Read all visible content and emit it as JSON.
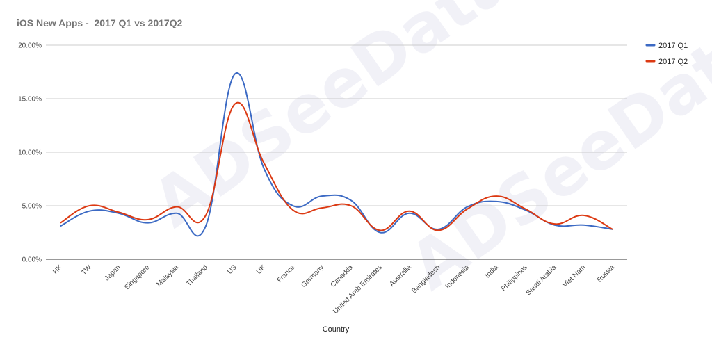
{
  "chart_data": {
    "type": "line",
    "title": "iOS New Apps -  2017 Q1 vs 2017Q2",
    "xlabel": "Country",
    "ylabel": "",
    "ylim": [
      0,
      0.2
    ],
    "yticks": [
      "0.00%",
      "5.00%",
      "10.00%",
      "15.00%",
      "20.00%"
    ],
    "ytick_values": [
      0,
      0.05,
      0.1,
      0.15,
      0.2
    ],
    "grid": true,
    "legend_position": "top-right",
    "watermark": "ADSeeData",
    "categories": [
      "HK",
      "TW",
      "Japan",
      "Singapore",
      "Malaysia",
      "Thailand",
      "US",
      "UK",
      "France",
      "Germany",
      "Canadda",
      "United Arab Emirates",
      "Australia",
      "Bangladesh",
      "Indonesia",
      "India",
      "Philippines",
      "Saudi Arabia",
      "Viet Nam",
      "Russia"
    ],
    "series": [
      {
        "name": "2017 Q1",
        "color": "#3c6ac4",
        "values": [
          0.031,
          0.045,
          0.043,
          0.034,
          0.043,
          0.031,
          0.173,
          0.085,
          0.05,
          0.059,
          0.055,
          0.025,
          0.043,
          0.028,
          0.049,
          0.054,
          0.046,
          0.032,
          0.032,
          0.028
        ]
      },
      {
        "name": "2017 Q2",
        "color": "#dc3912",
        "values": [
          0.034,
          0.05,
          0.044,
          0.037,
          0.049,
          0.041,
          0.145,
          0.09,
          0.046,
          0.048,
          0.05,
          0.027,
          0.045,
          0.027,
          0.047,
          0.059,
          0.047,
          0.033,
          0.041,
          0.028
        ]
      }
    ]
  }
}
